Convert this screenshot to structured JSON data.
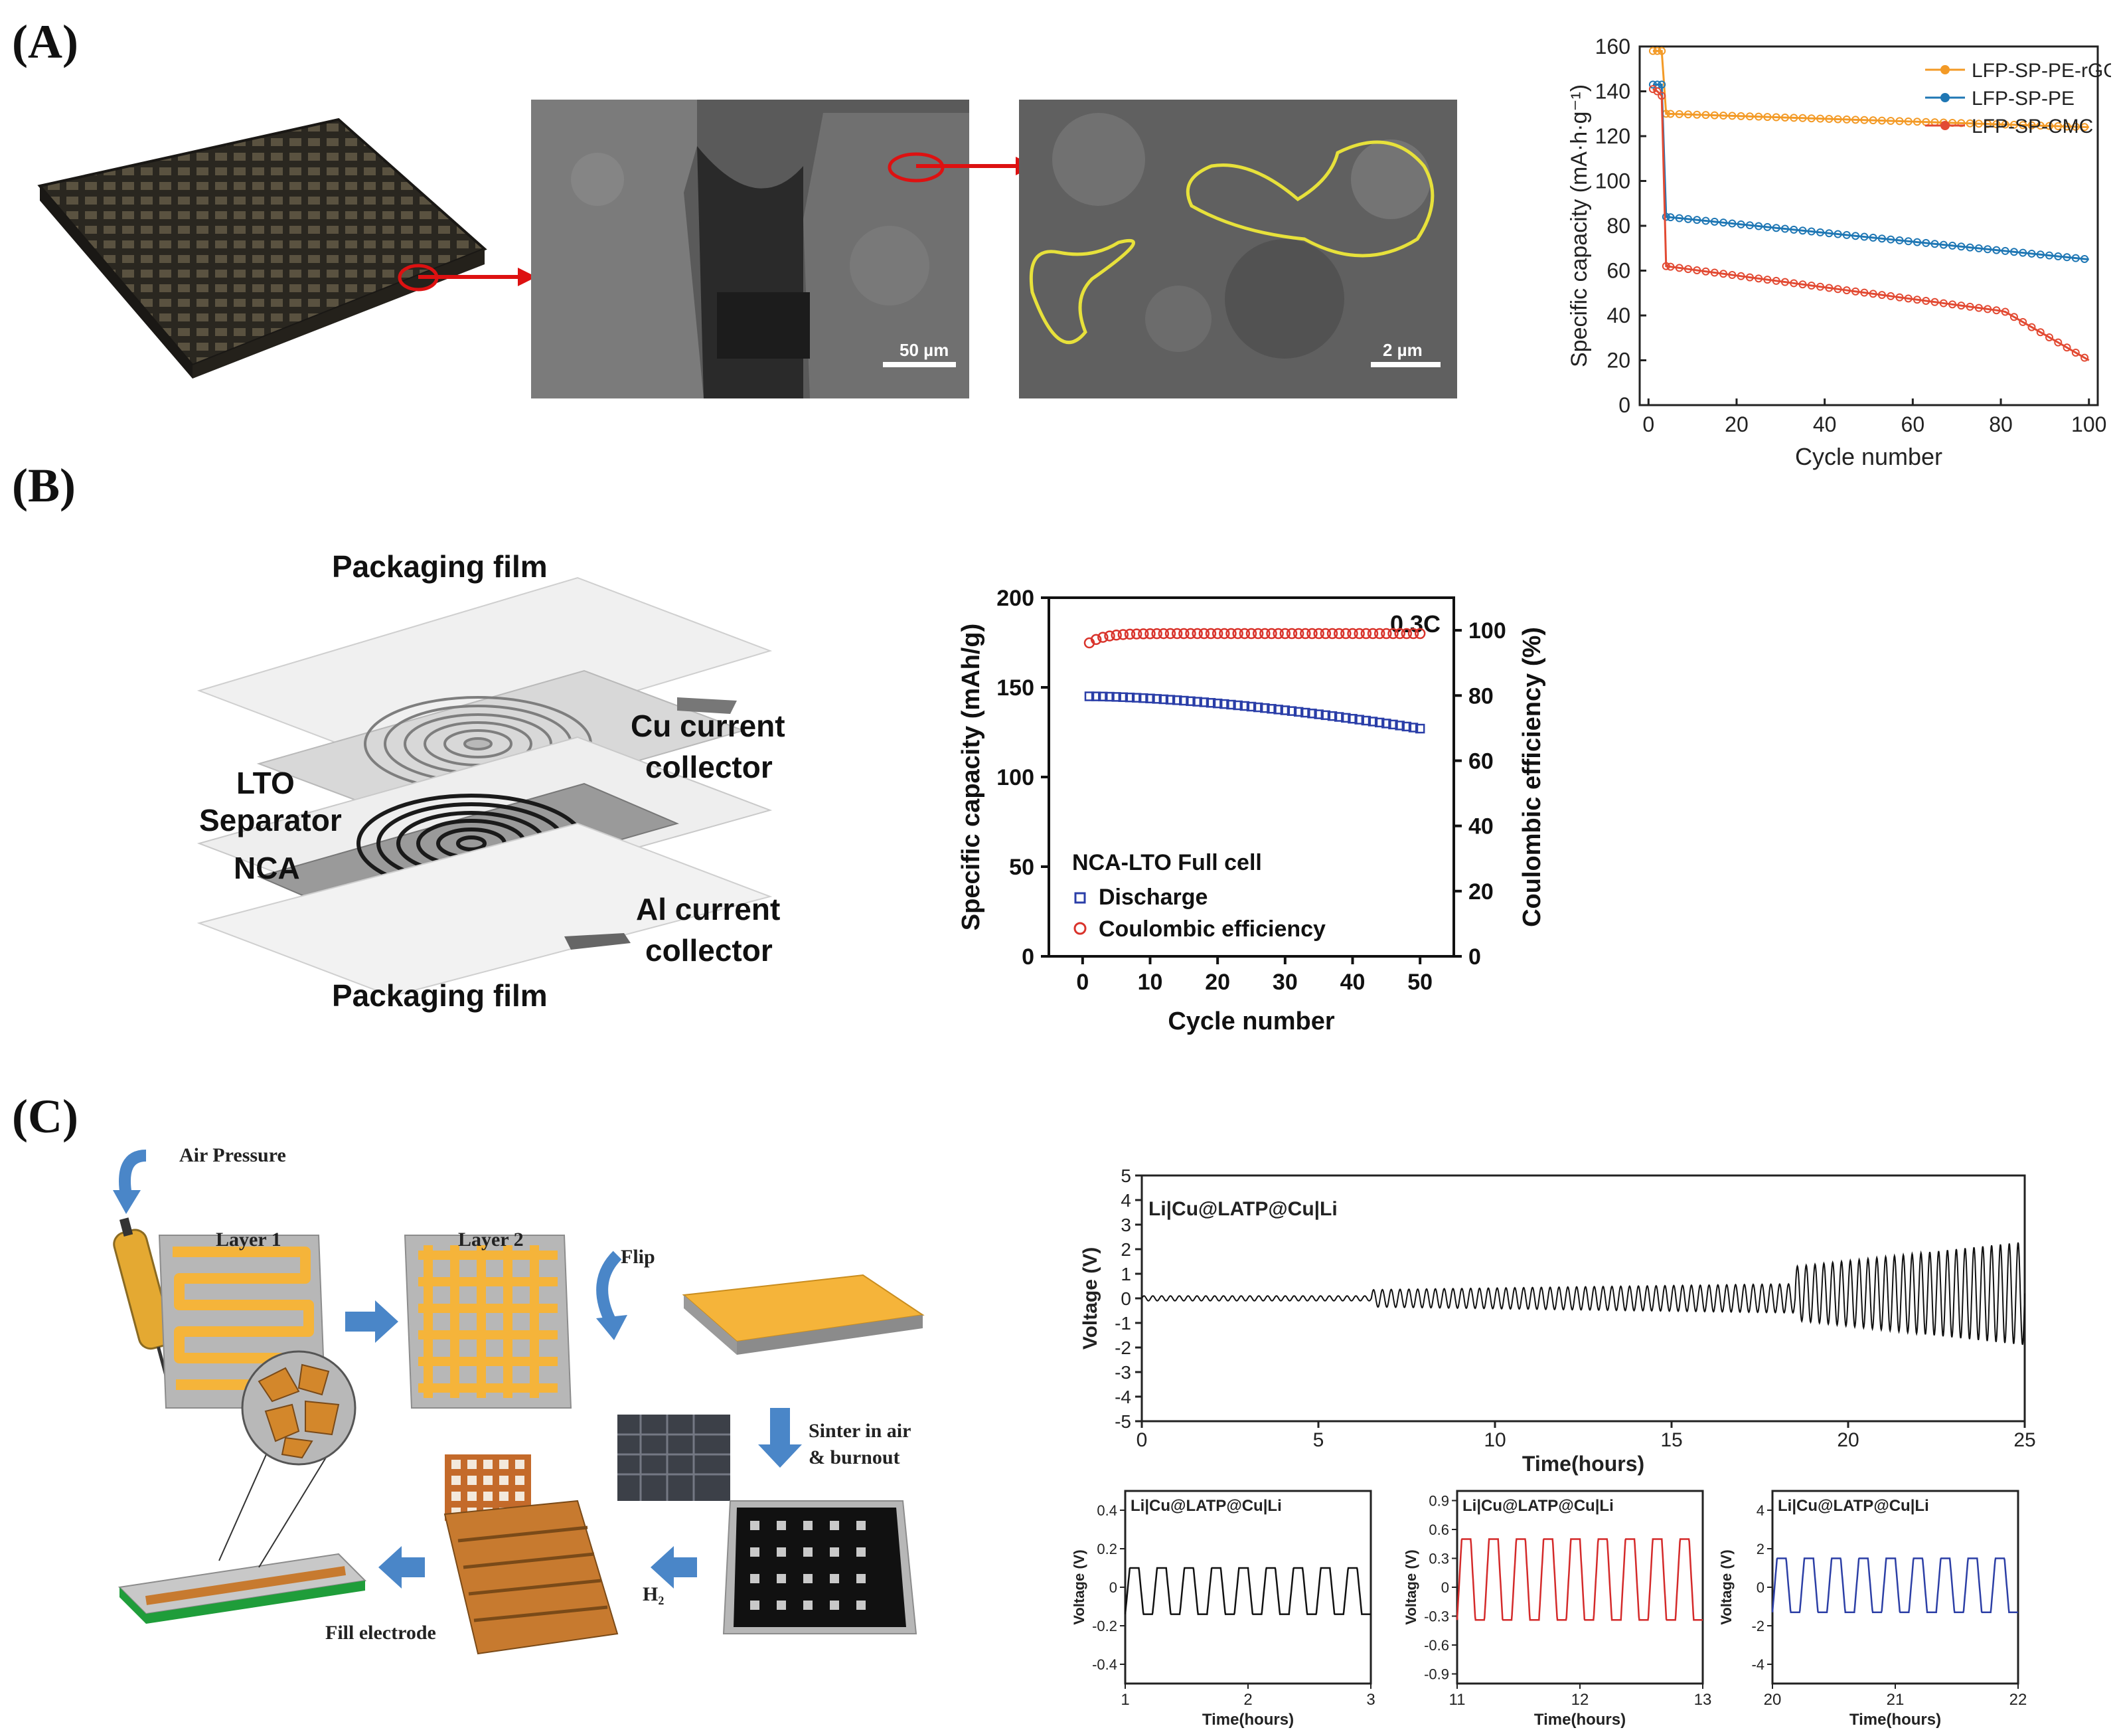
{
  "panels": {
    "a": {
      "label": "(A)"
    },
    "b": {
      "label": "(B)"
    },
    "c": {
      "label": "(C)"
    }
  },
  "panel_a": {
    "sem1_scale": "50 µm",
    "sem2_scale": "2 µm"
  },
  "panel_b": {
    "labels": {
      "packaging_top": "Packaging film",
      "cu_line1": "Cu current",
      "cu_line2": "collector",
      "lto": "LTO",
      "separator": "Separator",
      "nca": "NCA",
      "al_line1": "Al current",
      "al_line2": "collector",
      "packaging_bottom": "Packaging film"
    }
  },
  "panel_c": {
    "air_pressure": "Air Pressure",
    "layer1": "Layer 1",
    "layer2": "Layer 2",
    "flip": "Flip",
    "sinter_line1": "Sinter in air",
    "sinter_line2": "& burnout",
    "h2": "H₂",
    "fill_electrode": "Fill electrode"
  },
  "colors": {
    "orange": "#f39a26",
    "blue": "#1f77b4",
    "red": "#e24a33",
    "yellow_electrode": "#f5b43a",
    "arrow_blue": "#4a86c8"
  },
  "chart_data": [
    {
      "id": "a-capacity",
      "type": "line",
      "xlabel": "Cycle number",
      "ylabel": "Specific capacity (mA·h·g⁻¹)",
      "xlim": [
        0,
        100
      ],
      "ylim": [
        0,
        160
      ],
      "xticks": [
        0,
        20,
        40,
        60,
        80,
        100
      ],
      "yticks": [
        0,
        20,
        40,
        60,
        80,
        100,
        120,
        140,
        160
      ],
      "legend_position": "top-right",
      "series": [
        {
          "name": "LFP-SP-PE-rGO",
          "color": "#f39a26",
          "x": [
            1,
            2,
            3,
            4,
            100
          ],
          "values": [
            158,
            158,
            158,
            130,
            124
          ]
        },
        {
          "name": "LFP-SP-PE",
          "color": "#1f77b4",
          "x": [
            1,
            2,
            3,
            4,
            100
          ],
          "values": [
            143,
            143,
            143,
            84,
            65
          ]
        },
        {
          "name": "LFP-SP-CMC",
          "color": "#e24a33",
          "x": [
            1,
            2,
            3,
            4,
            100
          ],
          "values": [
            141,
            140,
            138,
            62,
            20
          ]
        }
      ]
    },
    {
      "id": "b-full-cell",
      "type": "scatter",
      "xlabel": "Cycle number",
      "ylabel_left": "Specific capacity (mAh/g)",
      "ylabel_right": "Coulombic efficiency (%)",
      "xlim": [
        -5,
        55
      ],
      "ylim_left": [
        0,
        200
      ],
      "ylim_right": [
        0,
        110
      ],
      "xticks": [
        0,
        10,
        20,
        30,
        40,
        50
      ],
      "yticks_left": [
        0,
        50,
        100,
        150,
        200
      ],
      "yticks_right": [
        0,
        20,
        40,
        60,
        80,
        100
      ],
      "annotation": "0.3C",
      "legend_title": "NCA-LTO Full cell",
      "series": [
        {
          "name": "Discharge",
          "axis": "left",
          "color": "#2a3ea8",
          "marker": "square",
          "x_start": 1,
          "x_end": 50,
          "start": 145,
          "end": 127
        },
        {
          "name": "Coulombic efficiency",
          "axis": "right",
          "color": "#d9332b",
          "marker": "circle",
          "x_start": 1,
          "x_end": 50,
          "start": 94.5,
          "end": 99
        }
      ]
    },
    {
      "id": "c-voltage-main",
      "type": "line",
      "title": "Li|Cu@LATP@Cu|Li",
      "xlabel": "Time(hours)",
      "ylabel": "Voltage (V)",
      "xlim": [
        0,
        25
      ],
      "ylim": [
        -5,
        5
      ],
      "xticks": [
        0,
        5,
        10,
        15,
        20,
        25
      ],
      "yticks": [
        -5,
        -4,
        -3,
        -2,
        -1,
        0,
        1,
        2,
        3,
        4,
        5
      ],
      "series": [
        {
          "name": "voltage",
          "color": "#111111",
          "amplitude_start": 0.1,
          "amplitude_end": 2.1
        }
      ]
    },
    {
      "id": "c-voltage-1",
      "type": "line",
      "title": "Li|Cu@LATP@Cu|Li",
      "xlabel": "Time(hours)",
      "ylabel": "Voltage (V)",
      "xlim": [
        1,
        3
      ],
      "ylim": [
        -0.5,
        0.5
      ],
      "xticks": [
        1,
        2,
        3
      ],
      "yticks": [
        -0.4,
        -0.2,
        0.0,
        0.2,
        0.4
      ],
      "series": [
        {
          "name": "voltage",
          "color": "#111111",
          "amplitude": 0.12,
          "offset": -0.02
        }
      ]
    },
    {
      "id": "c-voltage-2",
      "type": "line",
      "title": "Li|Cu@LATP@Cu|Li",
      "xlabel": "Time(hours)",
      "ylabel": "Voltage (V)",
      "xlim": [
        11,
        13
      ],
      "ylim": [
        -1.0,
        1.0
      ],
      "xticks": [
        11,
        12,
        13
      ],
      "yticks": [
        -0.9,
        -0.6,
        -0.3,
        0.0,
        0.3,
        0.6,
        0.9
      ],
      "series": [
        {
          "name": "voltage",
          "color": "#d42a2a",
          "amplitude": 0.42,
          "offset": 0.08
        }
      ]
    },
    {
      "id": "c-voltage-3",
      "type": "line",
      "title": "Li|Cu@LATP@Cu|Li",
      "xlabel": "Time(hours)",
      "ylabel": "Voltage (V)",
      "xlim": [
        20,
        22
      ],
      "ylim": [
        -5,
        5
      ],
      "xticks": [
        20,
        21,
        22
      ],
      "yticks": [
        -4,
        -2,
        0,
        2,
        4
      ],
      "series": [
        {
          "name": "voltage",
          "color": "#2c3fa6",
          "amplitude": 1.4,
          "offset": 0.1
        }
      ]
    }
  ]
}
